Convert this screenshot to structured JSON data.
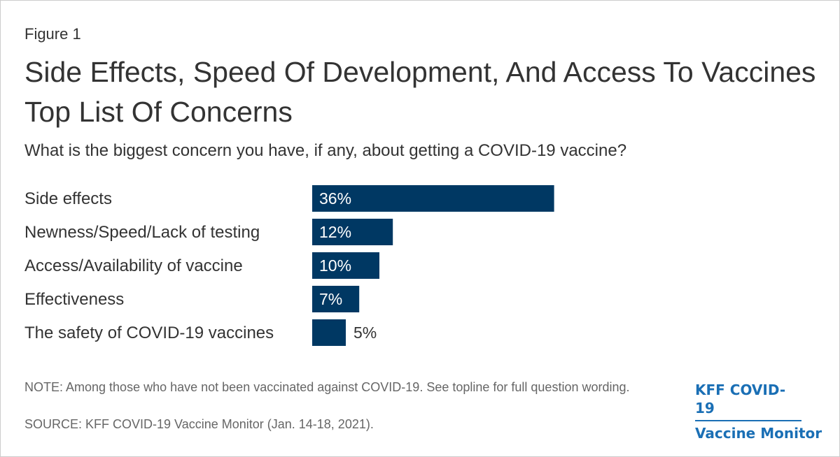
{
  "figure_label": "Figure 1",
  "title": "Side Effects, Speed Of Development, And Access To Vaccines Top List Of Concerns",
  "subtitle": "What is the biggest concern you have, if any, about getting a COVID-19 vaccine?",
  "note": "NOTE: Among those who have not been vaccinated against COVID-19. See topline for full question wording.",
  "source": "SOURCE: KFF COVID-19 Vaccine Monitor (Jan. 14-18, 2021).",
  "logo": {
    "line1": "KFF COVID-19",
    "line2": "Vaccine Monitor",
    "color": "#1a6fb5"
  },
  "colors": {
    "bar": "#003863",
    "label_inside": "#ffffff",
    "label_outside": "#333333",
    "text": "#333333"
  },
  "chart_data": {
    "type": "bar",
    "orientation": "horizontal",
    "categories": [
      "Side effects",
      "Newness/Speed/Lack of testing",
      "Access/Availability of vaccine",
      "Effectiveness",
      "The safety of COVID-19 vaccines"
    ],
    "values": [
      36,
      12,
      10,
      7,
      5
    ],
    "data_labels": [
      "36%",
      "12%",
      "10%",
      "7%",
      "5%"
    ],
    "unit": "%",
    "grid": false,
    "legend": "none"
  }
}
